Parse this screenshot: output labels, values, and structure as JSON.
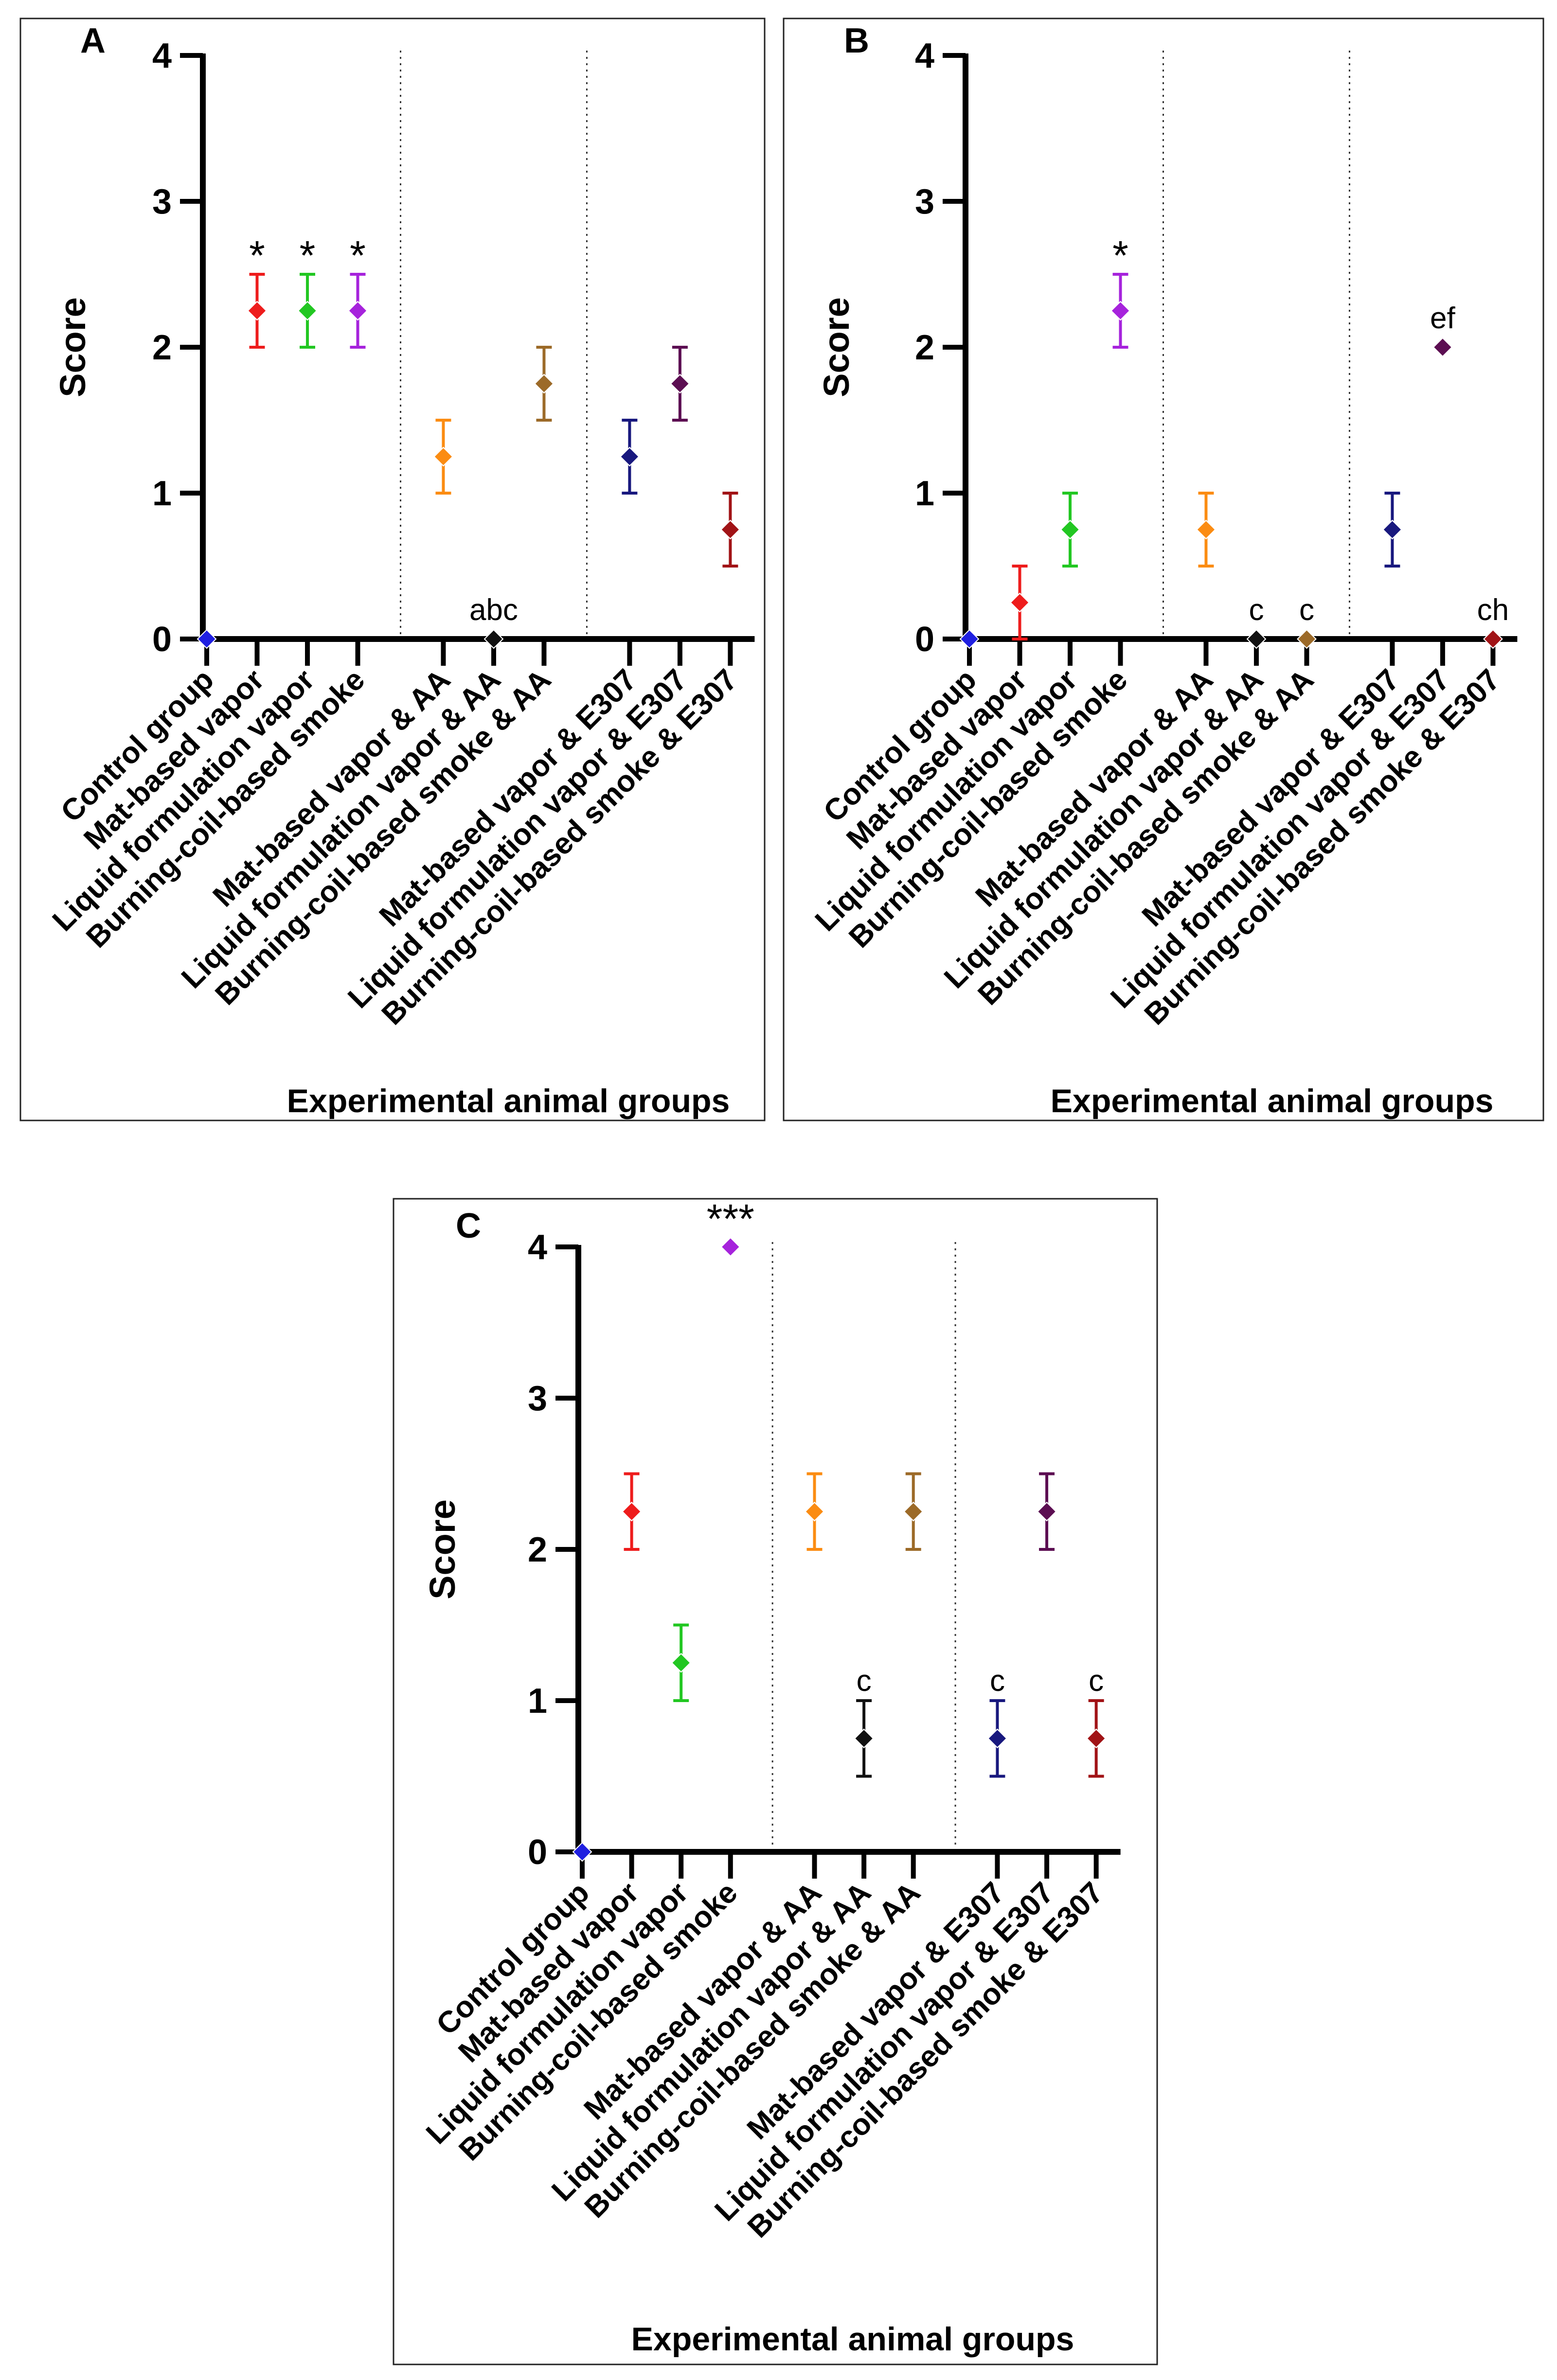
{
  "figure": {
    "xlabel": "Experimental animal groups",
    "ylabel": "Score"
  },
  "chart_data": [
    {
      "panel": "A",
      "type": "scatter",
      "xlabel": "Experimental animal groups",
      "ylabel": "Score",
      "ylim": [
        0,
        4
      ],
      "yticks": [
        "0",
        "1",
        "2",
        "3",
        "4"
      ],
      "categories": [
        "Control group",
        "Mat-based vapor",
        "Liquid formulation vapor",
        "Burning-coil-based smoke",
        "Mat-based vapor & AA",
        "Liquid formulation vapor & AA",
        "Burning-coil-based smoke & AA",
        "Mat-based vapor & E307",
        "Liquid formulation vapor & E307",
        "Burning-coil-based smoke & E307"
      ],
      "colors": [
        "#1f1fe0",
        "#ee1c1c",
        "#22c722",
        "#a623dc",
        "#fb8c12",
        "#111111",
        "#9c6a28",
        "#18187e",
        "#5c0e52",
        "#a11316"
      ],
      "values": [
        0,
        2.25,
        2.25,
        2.25,
        1.25,
        0,
        1.75,
        1.25,
        1.75,
        0.75
      ],
      "errors": [
        0,
        0.25,
        0.25,
        0.25,
        0.25,
        0,
        0.25,
        0.25,
        0.25,
        0.25
      ],
      "annotations": [
        "",
        "*",
        "*",
        "*",
        "",
        "abc",
        "",
        "",
        "",
        ""
      ]
    },
    {
      "panel": "B",
      "type": "scatter",
      "xlabel": "Experimental animal groups",
      "ylabel": "Score",
      "ylim": [
        0,
        4
      ],
      "yticks": [
        "0",
        "1",
        "2",
        "3",
        "4"
      ],
      "categories": [
        "Control group",
        "Mat-based vapor",
        "Liquid formulation vapor",
        "Burning-coil-based smoke",
        "Mat-based vapor & AA",
        "Liquid formulation vapor & AA",
        "Burning-coil-based smoke & AA",
        "Mat-based vapor & E307",
        "Liquid formulation vapor & E307",
        "Burning-coil-based smoke & E307"
      ],
      "colors": [
        "#1f1fe0",
        "#ee1c1c",
        "#22c722",
        "#a623dc",
        "#fb8c12",
        "#111111",
        "#9c6a28",
        "#18187e",
        "#5c0e52",
        "#a11316"
      ],
      "values": [
        0,
        0.25,
        0.75,
        2.25,
        0.75,
        0,
        0,
        0.75,
        2,
        0
      ],
      "errors": [
        0,
        0.25,
        0.25,
        0.25,
        0.25,
        0,
        0,
        0.25,
        0,
        0
      ],
      "annotations": [
        "",
        "",
        "",
        "*",
        "",
        "c",
        "c",
        "",
        "ef",
        "ch"
      ]
    },
    {
      "panel": "C",
      "type": "scatter",
      "xlabel": "Experimental animal groups",
      "ylabel": "Score",
      "ylim": [
        0,
        4
      ],
      "yticks": [
        "0",
        "1",
        "2",
        "3",
        "4"
      ],
      "categories": [
        "Control group",
        "Mat-based vapor",
        "Liquid formulation vapor",
        "Burning-coil-based smoke",
        "Mat-based vapor & AA",
        "Liquid formulation vapor & AA",
        "Burning-coil-based smoke & AA",
        "Mat-based vapor & E307",
        "Liquid formulation vapor & E307",
        "Burning-coil-based smoke & E307"
      ],
      "colors": [
        "#1f1fe0",
        "#ee1c1c",
        "#22c722",
        "#a623dc",
        "#fb8c12",
        "#111111",
        "#9c6a28",
        "#18187e",
        "#5c0e52",
        "#a11316"
      ],
      "values": [
        0,
        2.25,
        1.25,
        4,
        2.25,
        0.75,
        2.25,
        0.75,
        2.25,
        0.75
      ],
      "errors": [
        0,
        0.25,
        0.25,
        0,
        0.25,
        0.25,
        0.25,
        0.25,
        0.25,
        0.25
      ],
      "annotations": [
        "",
        "",
        "",
        "***",
        "",
        "c",
        "",
        "c",
        "",
        "c"
      ]
    }
  ]
}
